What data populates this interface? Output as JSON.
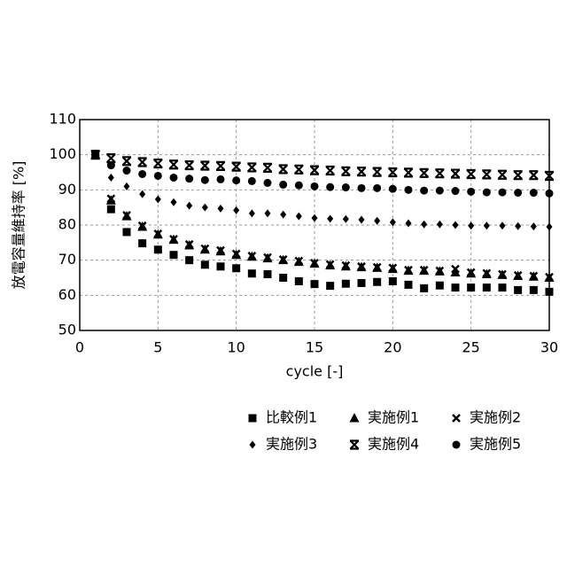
{
  "chart_data": {
    "type": "scatter",
    "xlabel": "cycle [-]",
    "ylabel": "放電容量維持率 [%]",
    "x": [
      1,
      2,
      3,
      4,
      5,
      6,
      7,
      8,
      9,
      10,
      11,
      12,
      13,
      14,
      15,
      16,
      17,
      18,
      19,
      20,
      21,
      22,
      23,
      24,
      25,
      26,
      27,
      28,
      29,
      30
    ],
    "series": [
      {
        "name": "比較例1",
        "marker": "square",
        "color": "#000000",
        "values": [
          100,
          84.5,
          78,
          74.8,
          73,
          71.5,
          70,
          68.7,
          68.2,
          67.7,
          66.2,
          66,
          65,
          64,
          63.2,
          62.7,
          63.3,
          63.5,
          63.8,
          64,
          63,
          62,
          62.8,
          62.2,
          62.2,
          62.2,
          62.2,
          61.5,
          61.5,
          61
        ]
      },
      {
        "name": "実施例1",
        "marker": "triangle",
        "color": "#000000",
        "values": [
          100,
          87,
          82.5,
          79.5,
          77.3,
          75.8,
          74.2,
          73,
          72.5,
          71.5,
          71,
          70.5,
          70,
          69.5,
          69,
          68.5,
          68.2,
          68,
          67.8,
          67.5,
          67,
          67,
          66.8,
          66.5,
          66.2,
          66,
          65.8,
          65.5,
          65.3,
          65
        ]
      },
      {
        "name": "実施例2",
        "marker": "x",
        "color": "#000000",
        "values": [
          100,
          87.5,
          82.8,
          79.8,
          77.5,
          76,
          74.5,
          73.3,
          72.8,
          71.8,
          71.2,
          70.8,
          70.2,
          69.8,
          69.2,
          68.8,
          68.5,
          68.2,
          68,
          67.8,
          67.2,
          67.2,
          67,
          67.5,
          66.5,
          66.3,
          66,
          65.7,
          65.5,
          65.2
        ]
      },
      {
        "name": "実施例3",
        "marker": "diamond",
        "color": "#000000",
        "values": [
          100,
          93.5,
          91,
          88.8,
          87.3,
          86.5,
          85.5,
          85,
          84.7,
          84.2,
          83.3,
          83.3,
          83,
          82.5,
          82,
          81.8,
          81.7,
          81.5,
          81.2,
          80.8,
          80.5,
          80.2,
          80.2,
          80,
          79.8,
          79.8,
          79.8,
          79.7,
          79.6,
          79.5
        ]
      },
      {
        "name": "実施例4",
        "marker": "star",
        "color": "#000000",
        "values": [
          100,
          99,
          98.2,
          97.9,
          97.5,
          97.2,
          97,
          96.9,
          96.8,
          96.6,
          96.4,
          96.3,
          95.9,
          95.8,
          95.6,
          95.5,
          95.3,
          95.2,
          95.1,
          95,
          94.9,
          94.8,
          94.7,
          94.6,
          94.5,
          94.4,
          94.3,
          94.2,
          94.2,
          94
        ]
      },
      {
        "name": "実施例5",
        "marker": "circle",
        "color": "#000000",
        "values": [
          100,
          97,
          95.5,
          94.5,
          94,
          93.5,
          93.2,
          92.8,
          93,
          92.7,
          92.5,
          92,
          91.5,
          91.3,
          91,
          90.8,
          90.7,
          90.5,
          90.5,
          90.3,
          90,
          89.8,
          89.8,
          89.7,
          89.5,
          89.3,
          89.3,
          89.2,
          89.2,
          89
        ]
      }
    ],
    "xlim": [
      0,
      30
    ],
    "xticks": [
      0,
      5,
      10,
      15,
      20,
      25,
      30
    ],
    "ylim": [
      50,
      110
    ],
    "yticks": [
      50,
      60,
      70,
      80,
      90,
      100,
      110
    ],
    "grid": true,
    "legend": "bottom"
  }
}
